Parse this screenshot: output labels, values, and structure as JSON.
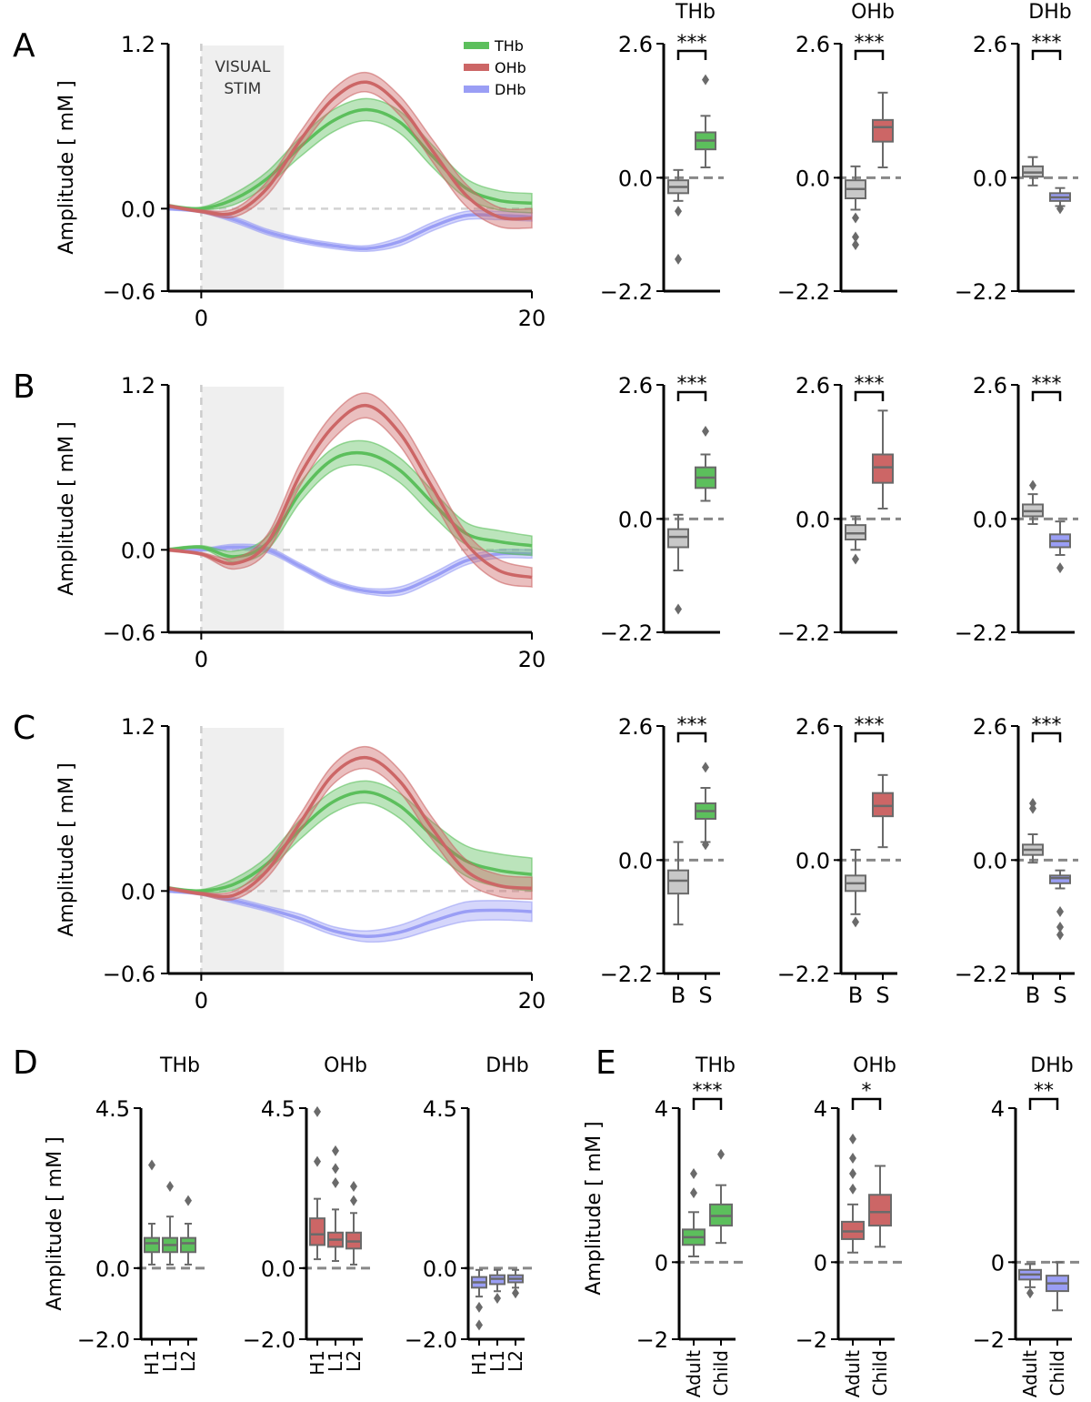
{
  "chart_data": {
    "type": "line+box",
    "colors": {
      "THb": "#5cbf5c",
      "OHb": "#cc6666",
      "DHb": "#9a9ef5",
      "baseline": "#c8c8c8",
      "edge": "#6a6a6a"
    },
    "legend": [
      "THb",
      "OHb",
      "DHb"
    ],
    "stim_label": [
      "VISUAL",
      "STIM"
    ],
    "ylabel": "Amplitude [ mM ]",
    "time_ticks": [
      "0",
      "20"
    ],
    "line_yticks": [
      "1.2",
      "0.0",
      "−0.6"
    ],
    "box_yticks": [
      "2.6",
      "0.0",
      "−2.2"
    ],
    "box_categories": [
      "B",
      "S"
    ],
    "rows": [
      {
        "letter": "A",
        "time": [
          -2,
          0,
          2,
          4,
          6,
          8,
          10,
          12,
          14,
          16,
          18,
          20
        ],
        "series": {
          "THb": {
            "mean": [
              0.02,
              0.0,
              0.07,
              0.22,
              0.45,
              0.64,
              0.72,
              0.63,
              0.38,
              0.15,
              0.06,
              0.04
            ],
            "err": [
              0.01,
              0.01,
              0.04,
              0.05,
              0.07,
              0.08,
              0.08,
              0.08,
              0.08,
              0.07,
              0.07,
              0.07
            ]
          },
          "OHb": {
            "mean": [
              0.02,
              -0.02,
              -0.03,
              0.15,
              0.5,
              0.8,
              0.92,
              0.75,
              0.42,
              0.1,
              -0.06,
              -0.07
            ],
            "err": [
              0.01,
              0.01,
              0.03,
              0.05,
              0.06,
              0.07,
              0.07,
              0.07,
              0.08,
              0.08,
              0.07,
              0.07
            ]
          },
          "DHb": {
            "mean": [
              0.0,
              -0.02,
              -0.08,
              -0.17,
              -0.23,
              -0.27,
              -0.29,
              -0.24,
              -0.13,
              -0.05,
              -0.05,
              -0.06
            ],
            "err": [
              0.01,
              0.01,
              0.02,
              0.02,
              0.02,
              0.02,
              0.02,
              0.03,
              0.03,
              0.03,
              0.03,
              0.03
            ]
          }
        },
        "boxes": {
          "THb": {
            "B": {
              "q1": -0.3,
              "med": -0.18,
              "q3": -0.05,
              "lo": -0.45,
              "hi": 0.15,
              "out": [
                -0.65,
                -1.58
              ]
            },
            "S": {
              "q1": 0.55,
              "med": 0.72,
              "q3": 0.88,
              "lo": 0.2,
              "hi": 1.2,
              "out": [
                1.9
              ]
            },
            "sig": "***"
          },
          "OHb": {
            "B": {
              "q1": -0.4,
              "med": -0.22,
              "q3": -0.05,
              "lo": -0.62,
              "hi": 0.22,
              "out": [
                -0.78,
                -1.15,
                -1.3
              ]
            },
            "S": {
              "q1": 0.7,
              "med": 0.98,
              "q3": 1.12,
              "lo": 0.2,
              "hi": 1.65,
              "out": []
            },
            "sig": "***"
          },
          "DHb": {
            "B": {
              "q1": 0.02,
              "med": 0.1,
              "q3": 0.22,
              "lo": -0.15,
              "hi": 0.4,
              "out": []
            },
            "S": {
              "q1": -0.45,
              "med": -0.38,
              "q3": -0.3,
              "lo": -0.55,
              "hi": -0.2,
              "out": [
                -0.6
              ]
            },
            "sig": "***"
          }
        }
      },
      {
        "letter": "B",
        "time": [
          -2,
          0,
          2,
          4,
          6,
          8,
          10,
          12,
          14,
          16,
          18,
          20
        ],
        "series": {
          "THb": {
            "mean": [
              0.0,
              0.02,
              -0.05,
              0.05,
              0.42,
              0.66,
              0.7,
              0.58,
              0.34,
              0.12,
              0.06,
              0.03
            ],
            "err": [
              0.01,
              0.01,
              0.04,
              0.05,
              0.07,
              0.08,
              0.09,
              0.09,
              0.09,
              0.08,
              0.08,
              0.07
            ]
          },
          "OHb": {
            "mean": [
              0.0,
              -0.03,
              -0.1,
              0.05,
              0.55,
              0.9,
              1.05,
              0.85,
              0.45,
              0.05,
              -0.15,
              -0.2
            ],
            "err": [
              0.01,
              0.01,
              0.04,
              0.06,
              0.08,
              0.09,
              0.09,
              0.09,
              0.09,
              0.08,
              0.08,
              0.07
            ]
          },
          "DHb": {
            "mean": [
              0.0,
              0.0,
              0.02,
              0.0,
              -0.12,
              -0.24,
              -0.3,
              -0.3,
              -0.2,
              -0.08,
              -0.03,
              -0.03
            ],
            "err": [
              0.01,
              0.01,
              0.02,
              0.02,
              0.02,
              0.02,
              0.02,
              0.03,
              0.03,
              0.03,
              0.03,
              0.03
            ]
          }
        },
        "boxes": {
          "THb": {
            "B": {
              "q1": -0.55,
              "med": -0.35,
              "q3": -0.2,
              "lo": -1.0,
              "hi": 0.08,
              "out": [
                -1.75
              ]
            },
            "S": {
              "q1": 0.6,
              "med": 0.8,
              "q3": 1.0,
              "lo": 0.35,
              "hi": 1.25,
              "out": [
                1.7
              ]
            },
            "sig": "***"
          },
          "OHb": {
            "B": {
              "q1": -0.4,
              "med": -0.28,
              "q3": -0.12,
              "lo": -0.6,
              "hi": 0.05,
              "out": [
                -0.78
              ]
            },
            "S": {
              "q1": 0.7,
              "med": 1.0,
              "q3": 1.25,
              "lo": 0.2,
              "hi": 2.1,
              "out": []
            },
            "sig": "***"
          },
          "DHb": {
            "B": {
              "q1": 0.05,
              "med": 0.15,
              "q3": 0.28,
              "lo": -0.1,
              "hi": 0.48,
              "out": [
                0.65
              ]
            },
            "S": {
              "q1": -0.55,
              "med": -0.43,
              "q3": -0.3,
              "lo": -0.7,
              "hi": -0.05,
              "out": [
                -0.95
              ]
            },
            "sig": "***"
          }
        }
      },
      {
        "letter": "C",
        "time": [
          -2,
          0,
          2,
          4,
          6,
          8,
          10,
          12,
          14,
          16,
          18,
          20
        ],
        "series": {
          "THb": {
            "mean": [
              0.02,
              0.0,
              0.05,
              0.2,
              0.45,
              0.65,
              0.72,
              0.62,
              0.4,
              0.22,
              0.15,
              0.12
            ],
            "err": [
              0.01,
              0.01,
              0.04,
              0.05,
              0.07,
              0.08,
              0.08,
              0.09,
              0.1,
              0.11,
              0.12,
              0.12
            ]
          },
          "OHb": {
            "mean": [
              0.02,
              -0.02,
              -0.03,
              0.15,
              0.5,
              0.85,
              0.97,
              0.8,
              0.45,
              0.15,
              0.04,
              0.02
            ],
            "err": [
              0.01,
              0.01,
              0.03,
              0.05,
              0.06,
              0.07,
              0.08,
              0.08,
              0.08,
              0.08,
              0.08,
              0.08
            ]
          },
          "DHb": {
            "mean": [
              0.0,
              -0.02,
              -0.07,
              -0.13,
              -0.2,
              -0.29,
              -0.33,
              -0.3,
              -0.22,
              -0.15,
              -0.14,
              -0.15
            ],
            "err": [
              0.01,
              0.01,
              0.02,
              0.02,
              0.03,
              0.03,
              0.04,
              0.05,
              0.06,
              0.07,
              0.07,
              0.07
            ]
          }
        },
        "boxes": {
          "THb": {
            "B": {
              "q1": -0.65,
              "med": -0.4,
              "q3": -0.2,
              "lo": -1.25,
              "hi": 0.35,
              "out": []
            },
            "S": {
              "q1": 0.8,
              "med": 0.95,
              "q3": 1.1,
              "lo": 0.35,
              "hi": 1.4,
              "out": [
                0.3,
                1.8
              ]
            },
            "sig": "***"
          },
          "OHb": {
            "B": {
              "q1": -0.6,
              "med": -0.45,
              "q3": -0.3,
              "lo": -1.05,
              "hi": 0.2,
              "out": [
                -1.2
              ]
            },
            "S": {
              "q1": 0.85,
              "med": 1.05,
              "q3": 1.3,
              "lo": 0.25,
              "hi": 1.65,
              "out": []
            },
            "sig": "***"
          },
          "DHb": {
            "B": {
              "q1": 0.1,
              "med": 0.2,
              "q3": 0.3,
              "lo": -0.05,
              "hi": 0.5,
              "out": [
                1.0,
                1.1
              ]
            },
            "S": {
              "q1": -0.45,
              "med": -0.35,
              "q3": -0.3,
              "lo": -0.55,
              "hi": -0.2,
              "out": [
                -1.0,
                -1.3,
                -1.45
              ]
            },
            "sig": "***"
          }
        }
      }
    ],
    "panel_d": {
      "letter": "D",
      "yticks": [
        "4.5",
        "0.0",
        "−2.0"
      ],
      "categories": [
        "H1",
        "L1",
        "L2"
      ],
      "groups": [
        {
          "title": "THb",
          "color": "THb",
          "boxes": [
            {
              "q1": 0.45,
              "med": 0.7,
              "q3": 0.85,
              "lo": 0.1,
              "hi": 1.25,
              "out": [
                2.9
              ]
            },
            {
              "q1": 0.45,
              "med": 0.65,
              "q3": 0.85,
              "lo": 0.1,
              "hi": 1.45,
              "out": [
                2.3
              ]
            },
            {
              "q1": 0.45,
              "med": 0.7,
              "q3": 0.85,
              "lo": 0.1,
              "hi": 1.25,
              "out": [
                1.9
              ]
            }
          ]
        },
        {
          "title": "OHb",
          "color": "OHb",
          "boxes": [
            {
              "q1": 0.65,
              "med": 0.95,
              "q3": 1.4,
              "lo": 0.25,
              "hi": 1.95,
              "out": [
                3.0,
                4.4
              ]
            },
            {
              "q1": 0.6,
              "med": 0.8,
              "q3": 1.0,
              "lo": 0.2,
              "hi": 1.65,
              "out": [
                2.4,
                2.8,
                3.3
              ]
            },
            {
              "q1": 0.55,
              "med": 0.75,
              "q3": 1.0,
              "lo": 0.1,
              "hi": 1.55,
              "out": [
                1.9,
                2.3
              ]
            }
          ]
        },
        {
          "title": "DHb",
          "color": "DHb",
          "boxes": [
            {
              "q1": -0.55,
              "med": -0.4,
              "q3": -0.25,
              "lo": -0.8,
              "hi": -0.05,
              "out": [
                -1.1,
                -1.6
              ]
            },
            {
              "q1": -0.45,
              "med": -0.3,
              "q3": -0.2,
              "lo": -0.65,
              "hi": -0.05,
              "out": [
                -0.85
              ]
            },
            {
              "q1": -0.4,
              "med": -0.3,
              "q3": -0.2,
              "lo": -0.55,
              "hi": -0.05,
              "out": [
                -0.7
              ]
            }
          ]
        }
      ]
    },
    "panel_e": {
      "letter": "E",
      "yticks": [
        "4",
        "0",
        "−2"
      ],
      "categories": [
        "Adult",
        "Child"
      ],
      "groups": [
        {
          "title": "THb",
          "color": "THb",
          "sig": "***",
          "boxes": [
            {
              "q1": 0.45,
              "med": 0.65,
              "q3": 0.85,
              "lo": 0.15,
              "hi": 1.3,
              "out": [
                1.8,
                2.3
              ]
            },
            {
              "q1": 0.95,
              "med": 1.2,
              "q3": 1.5,
              "lo": 0.5,
              "hi": 2.0,
              "out": [
                2.8
              ]
            }
          ]
        },
        {
          "title": "OHb",
          "color": "OHb",
          "sig": "*",
          "boxes": [
            {
              "q1": 0.6,
              "med": 0.8,
              "q3": 1.05,
              "lo": 0.25,
              "hi": 1.5,
              "out": [
                1.9,
                2.3,
                2.7,
                3.2
              ]
            },
            {
              "q1": 0.95,
              "med": 1.3,
              "q3": 1.75,
              "lo": 0.4,
              "hi": 2.5,
              "out": []
            }
          ]
        },
        {
          "title": "DHb",
          "color": "DHb",
          "sig": "**",
          "boxes": [
            {
              "q1": -0.45,
              "med": -0.32,
              "q3": -0.2,
              "lo": -0.65,
              "hi": -0.05,
              "out": [
                -0.8
              ]
            },
            {
              "q1": -0.75,
              "med": -0.55,
              "q3": -0.35,
              "lo": -1.25,
              "hi": 0.0,
              "out": []
            }
          ]
        }
      ]
    }
  }
}
